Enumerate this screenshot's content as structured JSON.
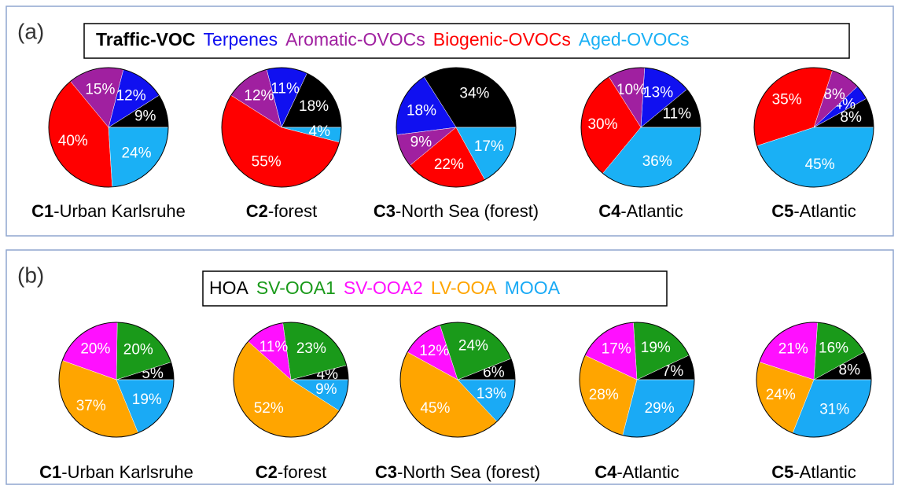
{
  "chart_data": [
    {
      "type": "pie",
      "label": "(a)",
      "categories": [
        "Traffic-VOC",
        "Terpenes",
        "Aromatic-OVOCs",
        "Biogenic-OVOCs",
        "Aged-OVOCs"
      ],
      "colors": [
        "#000000",
        "#1010f0",
        "#a020a0",
        "#ff0000",
        "#1ab0f5"
      ],
      "pies": [
        {
          "id": "C1",
          "site": "-Urban Karlsruhe",
          "values": [
            9,
            12,
            15,
            40,
            24
          ],
          "value_labels": [
            "9%",
            "12%",
            "15%",
            "40%",
            "24%"
          ]
        },
        {
          "id": "C2",
          "site": "-forest",
          "values": [
            18,
            11,
            12,
            55,
            4
          ],
          "value_labels": [
            "18%",
            "11%",
            "12%",
            "55%",
            "4%"
          ]
        },
        {
          "id": "C3",
          "site": "-North Sea (forest)",
          "values": [
            34,
            18,
            9,
            22,
            17
          ],
          "value_labels": [
            "34%",
            "18%",
            "9%",
            "22%",
            "17%"
          ]
        },
        {
          "id": "C4",
          "site": "-Atlantic",
          "values": [
            11,
            13,
            10,
            30,
            36
          ],
          "value_labels": [
            "11%",
            "13%",
            "10%",
            "30%",
            "36%"
          ]
        },
        {
          "id": "C5",
          "site": "-Atlantic",
          "values": [
            8,
            4,
            8,
            35,
            45
          ],
          "value_labels": [
            "8%",
            "4%",
            "8%",
            "35%",
            "45%"
          ]
        }
      ]
    },
    {
      "type": "pie",
      "label": "(b)",
      "categories": [
        "HOA",
        "SV-OOA1",
        "SV-OOA2",
        "LV-OOA",
        "MOOA"
      ],
      "colors": [
        "#000000",
        "#1a9a1a",
        "#ff10ff",
        "#ffa500",
        "#1aaaf5"
      ],
      "pies": [
        {
          "id": "C1",
          "site": "-Urban Karlsruhe",
          "values": [
            5,
            20,
            20,
            37,
            19
          ],
          "value_labels": [
            "5%",
            "20%",
            "20%",
            "37%",
            "19%"
          ]
        },
        {
          "id": "C2",
          "site": "-forest",
          "values": [
            4,
            23,
            11,
            52,
            9
          ],
          "value_labels": [
            "4%",
            "23%",
            "11%",
            "52%",
            "9%"
          ]
        },
        {
          "id": "C3",
          "site": "-North Sea (forest)",
          "values": [
            6,
            24,
            12,
            45,
            13
          ],
          "value_labels": [
            "6%",
            "24%",
            "12%",
            "45%",
            "13%"
          ]
        },
        {
          "id": "C4",
          "site": "-Atlantic",
          "values": [
            7,
            19,
            17,
            28,
            29
          ],
          "value_labels": [
            "7%",
            "19%",
            "17%",
            "28%",
            "29%"
          ]
        },
        {
          "id": "C5",
          "site": "-Atlantic",
          "values": [
            8,
            16,
            21,
            24,
            31
          ],
          "value_labels": [
            "8%",
            "16%",
            "21%",
            "24%",
            "31%"
          ]
        }
      ]
    }
  ]
}
